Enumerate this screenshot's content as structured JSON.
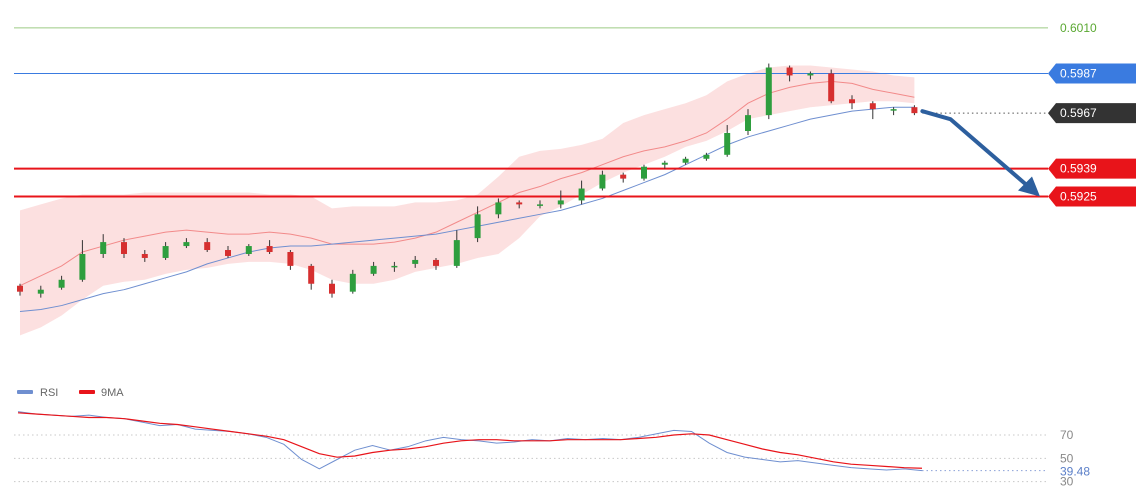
{
  "chart_data": [
    {
      "type": "candlestick",
      "title": "",
      "ylim": [
        0.5835,
        0.602
      ],
      "bands": {
        "upper": [
          0.5918,
          0.5921,
          0.5924,
          0.5926,
          0.5926,
          0.5926,
          0.5927,
          0.5927,
          0.5927,
          0.5927,
          0.5927,
          0.5927,
          0.5926,
          0.5926,
          0.5925,
          0.5919,
          0.592,
          0.592,
          0.592,
          0.5922,
          0.5922,
          0.5923,
          0.5926,
          0.5935,
          0.5945,
          0.5948,
          0.5949,
          0.5951,
          0.5954,
          0.5962,
          0.5966,
          0.5969,
          0.5972,
          0.5976,
          0.5983,
          0.5987,
          0.599,
          0.5991,
          0.5991,
          0.599,
          0.5989,
          0.5988,
          0.5986,
          0.5985
        ],
        "lower": [
          0.5855,
          0.5859,
          0.5865,
          0.5873,
          0.588,
          0.5882,
          0.5883,
          0.5886,
          0.5888,
          0.5889,
          0.5891,
          0.5892,
          0.5892,
          0.5891,
          0.5888,
          0.5883,
          0.5881,
          0.5881,
          0.5883,
          0.5887,
          0.5889,
          0.5891,
          0.5894,
          0.5896,
          0.5904,
          0.5915,
          0.592,
          0.5926,
          0.5932,
          0.5937,
          0.5941,
          0.5945,
          0.595,
          0.5953,
          0.5958,
          0.5964,
          0.5966,
          0.5968,
          0.597,
          0.5971,
          0.5972,
          0.5973,
          0.5973,
          0.5972
        ],
        "mid": [
          0.588,
          0.5885,
          0.589,
          0.5897,
          0.59,
          0.5903,
          0.5905,
          0.5907,
          0.5908,
          0.5907,
          0.5906,
          0.5906,
          0.5907,
          0.5906,
          0.5904,
          0.5901,
          0.5901,
          0.5901,
          0.5902,
          0.5904,
          0.5907,
          0.5912,
          0.5917,
          0.5922,
          0.5927,
          0.593,
          0.5934,
          0.5937,
          0.5941,
          0.5945,
          0.5948,
          0.595,
          0.5953,
          0.5957,
          0.5964,
          0.5972,
          0.5977,
          0.598,
          0.5982,
          0.5983,
          0.5982,
          0.5979,
          0.5977,
          0.5975
        ]
      },
      "moving_average": [
        0.5867,
        0.5868,
        0.587,
        0.5873,
        0.5876,
        0.5878,
        0.5881,
        0.5884,
        0.5887,
        0.5891,
        0.5894,
        0.5897,
        0.5899,
        0.59,
        0.59,
        0.5901,
        0.5902,
        0.5903,
        0.5904,
        0.5905,
        0.5906,
        0.5908,
        0.591,
        0.5912,
        0.5914,
        0.5916,
        0.5918,
        0.5921,
        0.5924,
        0.5928,
        0.5932,
        0.5936,
        0.5941,
        0.5946,
        0.5951,
        0.5955,
        0.5958,
        0.5961,
        0.5964,
        0.5966,
        0.5968,
        0.5969,
        0.597,
        0.597
      ],
      "candles": [
        [
          0.588,
          0.5877,
          0.5881,
          0.5875
        ],
        [
          0.5876,
          0.5878,
          0.588,
          0.5874
        ],
        [
          0.5879,
          0.5883,
          0.5885,
          0.5878
        ],
        [
          0.5883,
          0.5896,
          0.5903,
          0.5882
        ],
        [
          0.5896,
          0.5902,
          0.5906,
          0.5894
        ],
        [
          0.5902,
          0.5896,
          0.5904,
          0.5894
        ],
        [
          0.5896,
          0.5894,
          0.5898,
          0.5892
        ],
        [
          0.5894,
          0.59,
          0.5902,
          0.5893
        ],
        [
          0.59,
          0.5902,
          0.5904,
          0.5899
        ],
        [
          0.5902,
          0.5898,
          0.5904,
          0.5897
        ],
        [
          0.5898,
          0.5895,
          0.59,
          0.5894
        ],
        [
          0.5896,
          0.59,
          0.5901,
          0.5895
        ],
        [
          0.59,
          0.5897,
          0.5903,
          0.5896
        ],
        [
          0.5897,
          0.589,
          0.5898,
          0.5888
        ],
        [
          0.589,
          0.5881,
          0.5891,
          0.5878
        ],
        [
          0.5881,
          0.5876,
          0.5883,
          0.5874
        ],
        [
          0.5877,
          0.5886,
          0.5888,
          0.5876
        ],
        [
          0.5886,
          0.589,
          0.5892,
          0.5885
        ],
        [
          0.589,
          0.589,
          0.5892,
          0.5887
        ],
        [
          0.5891,
          0.5893,
          0.5895,
          0.5889
        ],
        [
          0.5893,
          0.589,
          0.5894,
          0.5888
        ],
        [
          0.589,
          0.5903,
          0.5908,
          0.5889
        ],
        [
          0.5904,
          0.5916,
          0.592,
          0.5902
        ],
        [
          0.5916,
          0.5922,
          0.5924,
          0.5914
        ],
        [
          0.5922,
          0.5921,
          0.5923,
          0.5919
        ],
        [
          0.5921,
          0.5921,
          0.5923,
          0.5919
        ],
        [
          0.5921,
          0.5923,
          0.5928,
          0.5919
        ],
        [
          0.5923,
          0.5929,
          0.5933,
          0.5921
        ],
        [
          0.5929,
          0.5936,
          0.5938,
          0.5928
        ],
        [
          0.5936,
          0.5934,
          0.5937,
          0.5932
        ],
        [
          0.5934,
          0.594,
          0.5941,
          0.5933
        ],
        [
          0.5941,
          0.5942,
          0.5943,
          0.5939
        ],
        [
          0.5942,
          0.5944,
          0.5945,
          0.5941
        ],
        [
          0.5944,
          0.5946,
          0.5947,
          0.5943
        ],
        [
          0.5946,
          0.5957,
          0.5961,
          0.5945
        ],
        [
          0.5958,
          0.5966,
          0.5969,
          0.5956
        ],
        [
          0.5966,
          0.599,
          0.5992,
          0.5964
        ],
        [
          0.599,
          0.5986,
          0.5991,
          0.5983
        ],
        [
          0.5986,
          0.5987,
          0.5988,
          0.5984
        ],
        [
          0.5987,
          0.5973,
          0.5989,
          0.5972
        ],
        [
          0.5974,
          0.5972,
          0.5976,
          0.5969
        ],
        [
          0.5972,
          0.5969,
          0.5973,
          0.5964
        ],
        [
          0.5969,
          0.5969,
          0.597,
          0.5966
        ],
        [
          0.597,
          0.5967,
          0.5971,
          0.5966
        ]
      ],
      "price_levels": [
        {
          "value": 0.601,
          "label": "0.6010",
          "color": "#5aa832",
          "style": "thin"
        },
        {
          "value": 0.5987,
          "label": "0.5987",
          "color": "#3a7be0",
          "style": "line"
        },
        {
          "value": 0.5967,
          "label": "0.5967",
          "color": "#333333",
          "style": "dotted"
        },
        {
          "value": 0.5939,
          "label": "0.5939",
          "color": "#e8141a",
          "style": "thick"
        },
        {
          "value": 0.5925,
          "label": "0.5925",
          "color": "#e8141a",
          "style": "thick"
        }
      ],
      "forecast_arrow": {
        "from": 0.5967,
        "to": 0.5925,
        "color": "#2d5f9e"
      },
      "colors": {
        "up": "#2e9e3e",
        "down": "#d62f2f",
        "band": "#fbd5d5",
        "ma": "#6f8fd0",
        "mid": "#f28a8a"
      }
    },
    {
      "type": "line",
      "title": "",
      "ylim": [
        28,
        100
      ],
      "yticks": [
        70,
        50,
        30
      ],
      "legend": [
        {
          "name": "RSI",
          "color": "#6f8fd0"
        },
        {
          "name": "9MA",
          "color": "#e8141a"
        }
      ],
      "series": [
        {
          "name": "RSI",
          "values": [
            90,
            88,
            87,
            86,
            87,
            85,
            84,
            81,
            78,
            79,
            75,
            74,
            73,
            71,
            68,
            62,
            49,
            41,
            49,
            57,
            61,
            57,
            60,
            65,
            68,
            66,
            65,
            63,
            64,
            66,
            65,
            67,
            66,
            67,
            66,
            68,
            71,
            74,
            73,
            63,
            55,
            51,
            49,
            47,
            48,
            46,
            44,
            42,
            41,
            40,
            41,
            39.5
          ]
        },
        {
          "name": "9MA",
          "values": [
            89,
            88,
            87,
            86,
            85,
            85,
            84,
            82,
            80,
            79,
            77,
            75,
            73,
            71,
            69,
            66,
            60,
            54,
            51,
            52,
            55,
            57,
            58,
            60,
            63,
            65,
            66,
            66,
            65,
            65,
            65,
            66,
            66,
            66,
            66,
            67,
            68,
            70,
            71,
            70,
            66,
            62,
            58,
            55,
            53,
            50,
            47,
            45,
            44,
            43,
            42,
            41.5
          ]
        }
      ],
      "last_value": "39.48",
      "colors": {
        "rsi": "#6f8fd0",
        "ma": "#e8141a",
        "tick_label": "#5b7fc8"
      }
    }
  ]
}
